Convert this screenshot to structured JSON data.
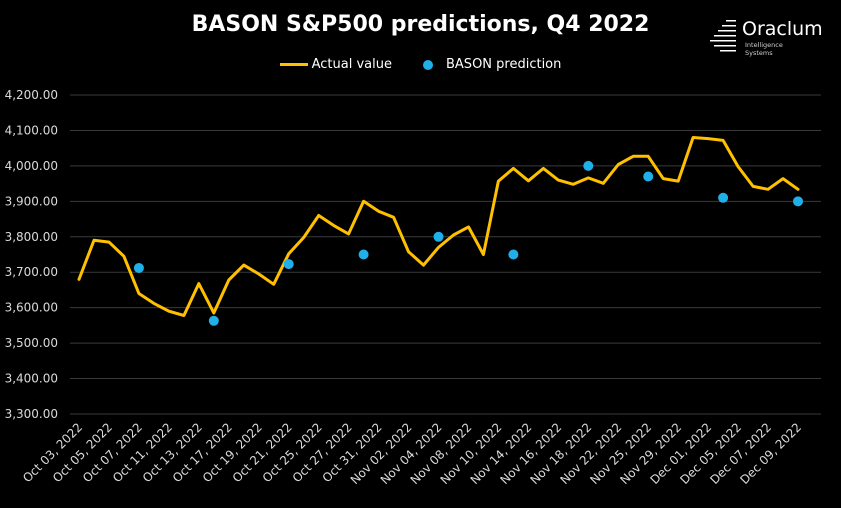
{
  "chart_data": {
    "type": "line",
    "title": "BASON S&P500 predictions, Q4 2022",
    "xlabel": "",
    "ylabel": "",
    "ylim": [
      3300,
      4200
    ],
    "y_ticks": [
      "3,300.00",
      "3,400.00",
      "3,500.00",
      "3,600.00",
      "3,700.00",
      "3,800.00",
      "3,900.00",
      "4,000.00",
      "4,100.00",
      "4,200.00"
    ],
    "grid": true,
    "legend_position": "top-center",
    "x_tick_labels": [
      "Oct 03, 2022",
      "Oct 05, 2022",
      "Oct 07, 2022",
      "Oct 11, 2022",
      "Oct 13, 2022",
      "Oct 17, 2022",
      "Oct 19, 2022",
      "Oct 21, 2022",
      "Oct 25, 2022",
      "Oct 27, 2022",
      "Oct 31, 2022",
      "Nov 02, 2022",
      "Nov 04, 2022",
      "Nov 08, 2022",
      "Nov 10, 2022",
      "Nov 14, 2022",
      "Nov 16, 2022",
      "Nov 18, 2022",
      "Nov 22, 2022",
      "Nov 25, 2022",
      "Nov 29, 2022",
      "Dec 01, 2022",
      "Dec 05, 2022",
      "Dec 07, 2022",
      "Dec 09, 2022"
    ],
    "dates": [
      "Oct 03, 2022",
      "Oct 04, 2022",
      "Oct 05, 2022",
      "Oct 06, 2022",
      "Oct 07, 2022",
      "Oct 10, 2022",
      "Oct 11, 2022",
      "Oct 12, 2022",
      "Oct 13, 2022",
      "Oct 14, 2022",
      "Oct 17, 2022",
      "Oct 18, 2022",
      "Oct 19, 2022",
      "Oct 20, 2022",
      "Oct 21, 2022",
      "Oct 24, 2022",
      "Oct 25, 2022",
      "Oct 26, 2022",
      "Oct 27, 2022",
      "Oct 28, 2022",
      "Oct 31, 2022",
      "Nov 01, 2022",
      "Nov 02, 2022",
      "Nov 03, 2022",
      "Nov 04, 2022",
      "Nov 07, 2022",
      "Nov 08, 2022",
      "Nov 09, 2022",
      "Nov 10, 2022",
      "Nov 11, 2022",
      "Nov 14, 2022",
      "Nov 15, 2022",
      "Nov 16, 2022",
      "Nov 17, 2022",
      "Nov 18, 2022",
      "Nov 21, 2022",
      "Nov 22, 2022",
      "Nov 23, 2022",
      "Nov 25, 2022",
      "Nov 28, 2022",
      "Nov 29, 2022",
      "Nov 30, 2022",
      "Dec 01, 2022",
      "Dec 02, 2022",
      "Dec 05, 2022",
      "Dec 06, 2022",
      "Dec 07, 2022",
      "Dec 08, 2022",
      "Dec 09, 2022"
    ],
    "series": [
      {
        "name": "Actual value",
        "kind": "line",
        "color": "#ffc000",
        "values": [
          3680,
          3790,
          3785,
          3745,
          3640,
          3612,
          3590,
          3578,
          3668,
          3585,
          3678,
          3720,
          3695,
          3666,
          3752,
          3798,
          3860,
          3832,
          3808,
          3900,
          3872,
          3855,
          3758,
          3720,
          3770,
          3805,
          3828,
          3750,
          3957,
          3993,
          3958,
          3993,
          3960,
          3948,
          3966,
          3951,
          4004,
          4027,
          4027,
          3964,
          3957,
          4080,
          4077,
          4072,
          3998,
          3942,
          3934,
          3964,
          3934
        ]
      },
      {
        "name": "BASON prediction",
        "kind": "scatter",
        "color": "#1fb0ea",
        "points": [
          {
            "x": "Oct 07, 2022",
            "y": 3712
          },
          {
            "x": "Oct 14, 2022",
            "y": 3563
          },
          {
            "x": "Oct 21, 2022",
            "y": 3723
          },
          {
            "x": "Oct 28, 2022",
            "y": 3750
          },
          {
            "x": "Nov 04, 2022",
            "y": 3800
          },
          {
            "x": "Nov 11, 2022",
            "y": 3750
          },
          {
            "x": "Nov 18, 2022",
            "y": 4000
          },
          {
            "x": "Nov 25, 2022",
            "y": 3970
          },
          {
            "x": "Dec 02, 2022",
            "y": 3910
          },
          {
            "x": "Dec 09, 2022",
            "y": 3900
          }
        ]
      }
    ]
  },
  "logo": {
    "name": "Oraclum",
    "sub_line1": "Intelligence",
    "sub_line2": "Systems"
  }
}
